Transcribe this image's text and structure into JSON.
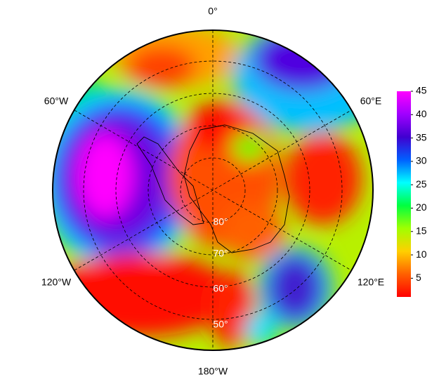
{
  "map": {
    "longitude_labels": [
      "0°",
      "60°E",
      "120°E",
      "180°W",
      "120°W",
      "60°W"
    ],
    "latitude_labels": [
      "80°",
      "70°",
      "60°",
      "50°"
    ],
    "colorbar": {
      "lim": [
        1,
        45
      ],
      "ticks": [
        5,
        10,
        15,
        20,
        25,
        30,
        35,
        40,
        45
      ],
      "colors": [
        "#ff0000",
        "#ff6000",
        "#ffd000",
        "#a0ff00",
        "#00ff40",
        "#00ffff",
        "#0060ff",
        "#4000d0",
        "#a000ff",
        "#ff00ff"
      ]
    }
  }
}
